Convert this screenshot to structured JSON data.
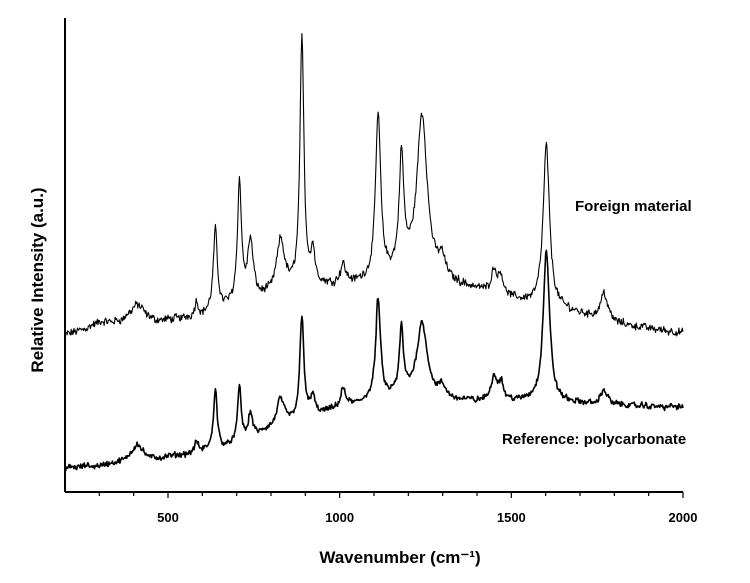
{
  "chart_data": {
    "type": "line",
    "title": "",
    "xlabel": "Wavenumber (cm⁻¹)",
    "ylabel": "Relative Intensity (a.u.)",
    "xlim": [
      200,
      2000
    ],
    "ylim": [
      0,
      1
    ],
    "x_ticks": [
      500,
      1000,
      1500,
      2000
    ],
    "x_tick_labels": [
      "500",
      "1000",
      "1500",
      "2000"
    ],
    "y_ticks_shown": false,
    "grid": false,
    "series": [
      {
        "name": "Foreign material",
        "baseline": [
          [
            200,
            0.33
          ],
          [
            300,
            0.355
          ],
          [
            450,
            0.355
          ],
          [
            600,
            0.37
          ],
          [
            700,
            0.395
          ],
          [
            800,
            0.41
          ],
          [
            900,
            0.43
          ],
          [
            1000,
            0.435
          ],
          [
            1100,
            0.44
          ],
          [
            1200,
            0.46
          ],
          [
            1300,
            0.44
          ],
          [
            1400,
            0.425
          ],
          [
            1500,
            0.405
          ],
          [
            1600,
            0.39
          ],
          [
            1700,
            0.375
          ],
          [
            1800,
            0.355
          ],
          [
            1900,
            0.345
          ],
          [
            2000,
            0.335
          ]
        ],
        "peaks": [
          {
            "x": 410,
            "height": 0.04,
            "width": 25
          },
          {
            "x": 583,
            "height": 0.03,
            "width": 6
          },
          {
            "x": 638,
            "height": 0.17,
            "width": 7
          },
          {
            "x": 708,
            "height": 0.25,
            "width": 7
          },
          {
            "x": 740,
            "height": 0.12,
            "width": 10
          },
          {
            "x": 828,
            "height": 0.11,
            "width": 14
          },
          {
            "x": 890,
            "height": 0.52,
            "width": 7
          },
          {
            "x": 922,
            "height": 0.07,
            "width": 7
          },
          {
            "x": 1010,
            "height": 0.04,
            "width": 9
          },
          {
            "x": 1112,
            "height": 0.35,
            "width": 9
          },
          {
            "x": 1180,
            "height": 0.24,
            "width": 8
          },
          {
            "x": 1240,
            "height": 0.34,
            "width": 18
          },
          {
            "x": 1298,
            "height": 0.04,
            "width": 12
          },
          {
            "x": 1450,
            "height": 0.05,
            "width": 10
          },
          {
            "x": 1470,
            "height": 0.04,
            "width": 8
          },
          {
            "x": 1602,
            "height": 0.34,
            "width": 11
          },
          {
            "x": 1770,
            "height": 0.06,
            "width": 12
          }
        ]
      },
      {
        "name": "Reference:  polycarbonate",
        "baseline": [
          [
            200,
            0.05
          ],
          [
            300,
            0.055
          ],
          [
            450,
            0.065
          ],
          [
            600,
            0.085
          ],
          [
            700,
            0.1
          ],
          [
            800,
            0.13
          ],
          [
            900,
            0.155
          ],
          [
            1000,
            0.175
          ],
          [
            1100,
            0.195
          ],
          [
            1200,
            0.2
          ],
          [
            1300,
            0.195
          ],
          [
            1400,
            0.19
          ],
          [
            1500,
            0.19
          ],
          [
            1600,
            0.19
          ],
          [
            1700,
            0.185
          ],
          [
            1800,
            0.183
          ],
          [
            1900,
            0.18
          ],
          [
            2000,
            0.18
          ]
        ],
        "peaks": [
          {
            "x": 410,
            "height": 0.04,
            "width": 20
          },
          {
            "x": 583,
            "height": 0.02,
            "width": 6
          },
          {
            "x": 638,
            "height": 0.13,
            "width": 6
          },
          {
            "x": 708,
            "height": 0.12,
            "width": 6
          },
          {
            "x": 740,
            "height": 0.05,
            "width": 8
          },
          {
            "x": 828,
            "height": 0.06,
            "width": 12
          },
          {
            "x": 890,
            "height": 0.22,
            "width": 7
          },
          {
            "x": 922,
            "height": 0.04,
            "width": 7
          },
          {
            "x": 1010,
            "height": 0.04,
            "width": 8
          },
          {
            "x": 1112,
            "height": 0.21,
            "width": 8
          },
          {
            "x": 1180,
            "height": 0.14,
            "width": 7
          },
          {
            "x": 1240,
            "height": 0.16,
            "width": 18
          },
          {
            "x": 1298,
            "height": 0.02,
            "width": 10
          },
          {
            "x": 1450,
            "height": 0.05,
            "width": 10
          },
          {
            "x": 1470,
            "height": 0.04,
            "width": 8
          },
          {
            "x": 1602,
            "height": 0.32,
            "width": 11
          },
          {
            "x": 1770,
            "height": 0.03,
            "width": 12
          }
        ]
      }
    ]
  }
}
